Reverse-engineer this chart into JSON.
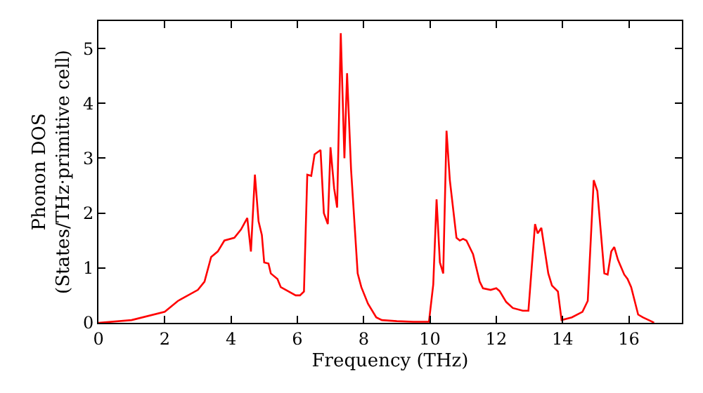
{
  "chart_data": {
    "type": "line",
    "xlabel": "Frequency (THz)",
    "ylabel": "Phonon DOS\n(States/THz·primitive cell)",
    "xlim": [
      0,
      17.6
    ],
    "ylim": [
      0,
      5.5
    ],
    "xticks": [
      0,
      2,
      4,
      6,
      8,
      10,
      12,
      14,
      16
    ],
    "yticks": [
      0,
      1,
      2,
      3,
      4,
      5
    ],
    "marker": "none",
    "line_style": "solid",
    "series": [
      {
        "color": "#ff0000",
        "x": [
          0,
          1,
          2,
          2.4,
          3,
          3.2,
          3.4,
          3.6,
          3.8,
          4.1,
          4.3,
          4.49,
          4.6,
          4.72,
          4.83,
          4.93,
          5.0,
          5.13,
          5.2,
          5.4,
          5.5,
          5.95,
          6.08,
          6.2,
          6.3,
          6.42,
          6.52,
          6.7,
          6.8,
          6.92,
          7.0,
          7.11,
          7.2,
          7.31,
          7.42,
          7.5,
          7.62,
          7.82,
          7.93,
          8.13,
          8.38,
          8.55,
          9.0,
          9.5,
          9.97,
          10.1,
          10.2,
          10.3,
          10.4,
          10.5,
          10.6,
          10.8,
          10.9,
          11.0,
          11.1,
          11.3,
          11.5,
          11.6,
          11.83,
          12.0,
          12.1,
          12.3,
          12.5,
          12.8,
          12.97,
          13.17,
          13.25,
          13.36,
          13.57,
          13.68,
          13.86,
          13.97,
          14.28,
          14.6,
          14.76,
          14.94,
          15.05,
          15.26,
          15.36,
          15.47,
          15.56,
          15.67,
          15.86,
          15.96,
          16.07,
          16.28,
          16.42,
          16.7,
          16.76
        ],
        "values": [
          0,
          0.05,
          0.2,
          0.4,
          0.6,
          0.75,
          1.2,
          1.3,
          1.5,
          1.55,
          1.7,
          1.91,
          1.3,
          2.7,
          1.85,
          1.6,
          1.1,
          1.08,
          0.9,
          0.8,
          0.65,
          0.5,
          0.5,
          0.57,
          2.7,
          2.68,
          3.07,
          3.15,
          2.0,
          1.8,
          3.2,
          2.45,
          2.1,
          5.28,
          3.0,
          4.55,
          2.8,
          0.9,
          0.65,
          0.35,
          0.1,
          0.05,
          0.03,
          0.02,
          0.02,
          0.7,
          2.25,
          1.1,
          0.9,
          3.5,
          2.6,
          1.55,
          1.5,
          1.53,
          1.5,
          1.25,
          0.75,
          0.63,
          0.6,
          0.63,
          0.58,
          0.38,
          0.27,
          0.22,
          0.22,
          1.8,
          1.63,
          1.73,
          0.9,
          0.68,
          0.57,
          0.05,
          0.1,
          0.2,
          0.4,
          2.6,
          2.4,
          0.9,
          0.88,
          1.3,
          1.38,
          1.15,
          0.88,
          0.8,
          0.65,
          0.15,
          0.1,
          0.02,
          0
        ]
      }
    ]
  }
}
